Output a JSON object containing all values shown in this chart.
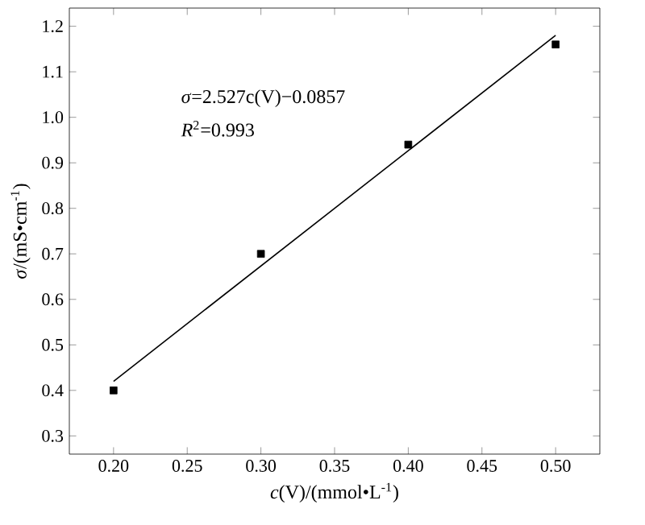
{
  "chart_data": {
    "type": "scatter",
    "xlabel": "*c*(V)/(mmol•L$^{-1}$)",
    "ylabel": "*σ*/(mS•cm$^{-1}$)",
    "xlim": [
      0.17,
      0.53
    ],
    "ylim": [
      0.26,
      1.24
    ],
    "xticks": [
      {
        "value": 0.2,
        "label": "0.20"
      },
      {
        "value": 0.25,
        "label": "0.25"
      },
      {
        "value": 0.3,
        "label": "0.30"
      },
      {
        "value": 0.35,
        "label": "0.35"
      },
      {
        "value": 0.4,
        "label": "0.40"
      },
      {
        "value": 0.45,
        "label": "0.45"
      },
      {
        "value": 0.5,
        "label": "0.50"
      }
    ],
    "yticks": [
      {
        "value": 0.3,
        "label": "0.3"
      },
      {
        "value": 0.4,
        "label": "0.4"
      },
      {
        "value": 0.5,
        "label": "0.5"
      },
      {
        "value": 0.6,
        "label": "0.6"
      },
      {
        "value": 0.7,
        "label": "0.7"
      },
      {
        "value": 0.8,
        "label": "0.8"
      },
      {
        "value": 0.9,
        "label": "0.9"
      },
      {
        "value": 1.0,
        "label": "1.0"
      },
      {
        "value": 1.1,
        "label": "1.1"
      },
      {
        "value": 1.2,
        "label": "1.2"
      }
    ],
    "series": [
      {
        "color": "#000000",
        "marker": "square",
        "x": [
          0.2,
          0.3,
          0.4,
          0.5
        ],
        "values": [
          0.4,
          0.7,
          0.94,
          1.16
        ]
      },
      {
        "type": "line",
        "color": "#000000",
        "marker": "none",
        "line_style": "solid",
        "x": [
          0.2,
          0.5
        ],
        "values": [
          0.42,
          1.18
        ]
      }
    ],
    "annotations": [
      "*σ*=2.527c(V)−0.0857",
      "*R*$^{2}$=0.993"
    ]
  }
}
